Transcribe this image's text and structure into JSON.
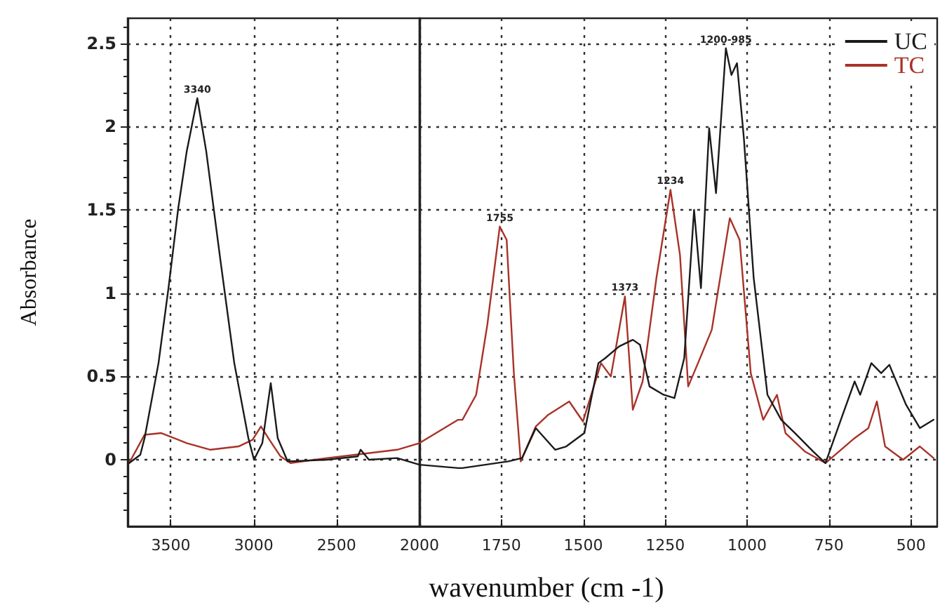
{
  "chart_data": [
    {
      "type": "line",
      "ylabel": "Absorbance",
      "series": [
        {
          "color": "#1a1a1a",
          "x": [
            3751,
            3684,
            3658,
            3574,
            3514,
            3455,
            3404,
            3340,
            3286,
            3201,
            3117,
            3032,
            2998,
            2948,
            2897,
            2855,
            2795,
            2558,
            2372,
            2355,
            2305,
            2135,
            2000
          ],
          "values": [
            -0.02,
            0.03,
            0.13,
            0.58,
            1.03,
            1.51,
            1.85,
            2.17,
            1.85,
            1.2,
            0.58,
            0.13,
            0.0,
            0.1,
            0.46,
            0.13,
            -0.01,
            0.0,
            0.02,
            0.06,
            0.0,
            0.01,
            -0.03
          ]
        },
        {
          "color": "#a83228",
          "x": [
            3751,
            3658,
            3557,
            3404,
            3261,
            3091,
            3007,
            2956,
            2905,
            2838,
            2778,
            2558,
            2135,
            2000
          ],
          "values": [
            -0.02,
            0.15,
            0.16,
            0.1,
            0.06,
            0.08,
            0.12,
            0.2,
            0.12,
            0.02,
            -0.02,
            0.01,
            0.06,
            0.1
          ]
        }
      ],
      "xlim": [
        3760,
        2000
      ],
      "xticks": [
        3500,
        3000,
        2500
      ],
      "ylim": [
        -0.4,
        2.65
      ],
      "yticks": [
        0,
        0.5,
        1,
        1.5,
        2,
        2.5
      ],
      "annotations": [
        {
          "text": "3340",
          "x": 3340,
          "y": 2.17
        }
      ],
      "grid": true,
      "marker": "none",
      "line_style": "solid"
    },
    {
      "type": "line",
      "xlabel": "wavenumber (cm -1)",
      "series": [
        {
          "name": "UC",
          "color": "#1a1a1a",
          "x": [
            2000,
            1882,
            1869,
            1729,
            1687,
            1645,
            1586,
            1552,
            1497,
            1454,
            1433,
            1391,
            1349,
            1327,
            1298,
            1255,
            1222,
            1192,
            1162,
            1141,
            1116,
            1095,
            1065,
            1048,
            1031,
            1010,
            980,
            938,
            896,
            854,
            799,
            761,
            714,
            672,
            655,
            621,
            591,
            566,
            515,
            473,
            431
          ],
          "values": [
            -0.03,
            -0.05,
            -0.05,
            -0.01,
            0.01,
            0.19,
            0.06,
            0.08,
            0.16,
            0.58,
            0.61,
            0.68,
            0.72,
            0.69,
            0.44,
            0.39,
            0.37,
            0.61,
            1.5,
            1.03,
            1.99,
            1.6,
            2.47,
            2.31,
            2.38,
            1.93,
            1.09,
            0.39,
            0.24,
            0.16,
            0.05,
            -0.02,
            0.24,
            0.47,
            0.39,
            0.58,
            0.52,
            0.57,
            0.33,
            0.19,
            0.24
          ]
        },
        {
          "name": "TC",
          "color": "#a83228",
          "x": [
            2000,
            1882,
            1869,
            1827,
            1793,
            1755,
            1734,
            1712,
            1691,
            1645,
            1607,
            1543,
            1501,
            1446,
            1416,
            1373,
            1349,
            1319,
            1277,
            1234,
            1205,
            1180,
            1150,
            1108,
            1053,
            1023,
            989,
            951,
            909,
            883,
            824,
            761,
            672,
            630,
            604,
            579,
            524,
            473,
            431
          ],
          "values": [
            0.1,
            0.24,
            0.24,
            0.39,
            0.81,
            1.4,
            1.32,
            0.52,
            -0.01,
            0.2,
            0.27,
            0.35,
            0.23,
            0.58,
            0.5,
            0.98,
            0.3,
            0.47,
            1.09,
            1.62,
            1.23,
            0.44,
            0.58,
            0.78,
            1.45,
            1.32,
            0.52,
            0.24,
            0.39,
            0.16,
            0.05,
            -0.02,
            0.13,
            0.19,
            0.35,
            0.08,
            0.0,
            0.08,
            0.01
          ]
        }
      ],
      "xlim": [
        2000,
        420
      ],
      "xticks": [
        2000,
        1750,
        1500,
        1250,
        1000,
        750,
        500
      ],
      "ylim": [
        -0.4,
        2.65
      ],
      "yticks": [
        0,
        0.5,
        1,
        1.5,
        2,
        2.5
      ],
      "tick_labels": "x",
      "annotations": [
        {
          "text": "1755",
          "x": 1755,
          "y": 1.4
        },
        {
          "text": "1373",
          "x": 1373,
          "y": 0.98
        },
        {
          "text": "1234",
          "x": 1234,
          "y": 1.62
        },
        {
          "text": "1200-985",
          "x": 1065,
          "y": 2.47
        }
      ],
      "grid": true,
      "legend": "top right",
      "marker": "none",
      "line_style": "solid"
    }
  ]
}
